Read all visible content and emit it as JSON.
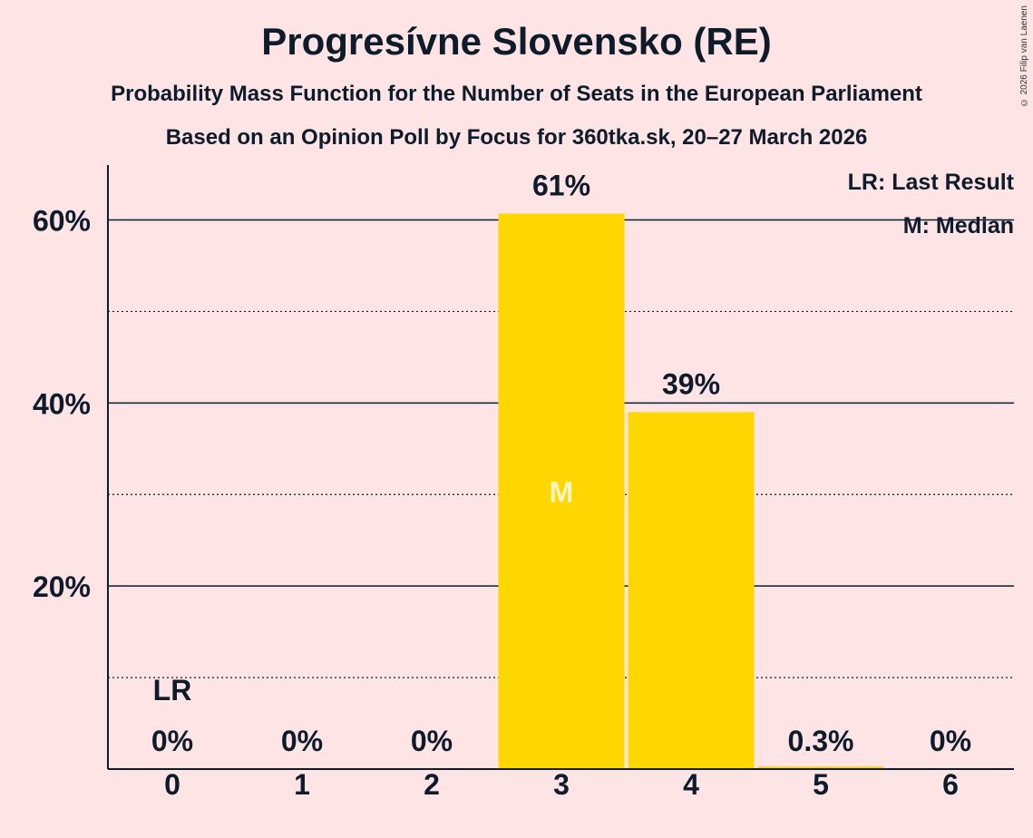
{
  "header": {
    "title": "Progresívne Slovensko (RE)",
    "subtitle1": "Probability Mass Function for the Number of Seats in the European Parliament",
    "subtitle2": "Based on an Opinion Poll by Focus for 360tka.sk, 20–27 March 2026",
    "copyright": "© 2026 Filip van Laenen"
  },
  "colors": {
    "background": "#FFE4E6",
    "bar": "#FFD700",
    "text": "#0D1B2A"
  },
  "chart_data": {
    "type": "bar",
    "title": "Progresívne Slovensko (RE)",
    "xlabel": "",
    "ylabel": "",
    "categories": [
      "0",
      "1",
      "2",
      "3",
      "4",
      "5",
      "6"
    ],
    "values": [
      0,
      0,
      0,
      60.7,
      39.0,
      0.3,
      0
    ],
    "value_labels": [
      "0%",
      "0%",
      "0%",
      "61%",
      "39%",
      "0.3%",
      "0%"
    ],
    "ylim": [
      0,
      66
    ],
    "yticks_major": [
      20,
      40,
      60
    ],
    "ytick_labels": [
      "20%",
      "40%",
      "60%"
    ],
    "yticks_minor": [
      10,
      30,
      50
    ],
    "last_result_category": "0",
    "last_result_marker": "LR",
    "median_category": "3",
    "median_marker": "M",
    "legend": [
      "LR: Last Result",
      "M: Median"
    ],
    "legend_position": "top-right"
  }
}
